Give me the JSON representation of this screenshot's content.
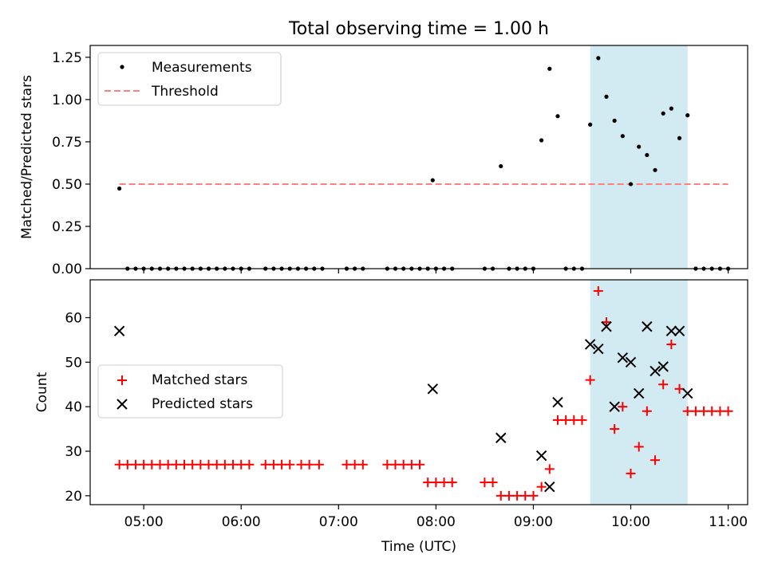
{
  "figure": {
    "title": "Total observing time = 1.00 h"
  },
  "chart_data": [
    {
      "type": "scatter",
      "ylabel": "Matched/Predicted stars",
      "xlabel": "",
      "ylim": [
        0,
        1.32
      ],
      "yticks": [
        "0.00",
        "0.25",
        "0.50",
        "0.75",
        "1.00",
        "1.25"
      ],
      "ytick_values": [
        0,
        0.25,
        0.5,
        0.75,
        1.0,
        1.25
      ],
      "x_tick_values": [
        "05:00",
        "06:00",
        "07:00",
        "08:00",
        "09:00",
        "10:00",
        "11:00"
      ],
      "grid": false,
      "legend_position": "upper-left",
      "highlight": {
        "from": "09:35",
        "to": "10:35",
        "color": "#add8e6"
      },
      "threshold": {
        "name": "Threshold",
        "value": 0.5,
        "from": "04:45",
        "to": "11:00",
        "color": "#ff8080"
      },
      "series": [
        {
          "name": "Measurements",
          "color": "#000000",
          "marker": "dot",
          "points": [
            [
              "04:45",
              0.474
            ],
            [
              "04:50",
              0
            ],
            [
              "04:55",
              0
            ],
            [
              "05:00",
              0
            ],
            [
              "05:05",
              0
            ],
            [
              "05:10",
              0
            ],
            [
              "05:15",
              0
            ],
            [
              "05:20",
              0
            ],
            [
              "05:25",
              0
            ],
            [
              "05:30",
              0
            ],
            [
              "05:35",
              0
            ],
            [
              "05:40",
              0
            ],
            [
              "05:45",
              0
            ],
            [
              "05:50",
              0
            ],
            [
              "05:55",
              0
            ],
            [
              "06:00",
              0
            ],
            [
              "06:05",
              0
            ],
            [
              "06:15",
              0
            ],
            [
              "06:20",
              0
            ],
            [
              "06:25",
              0
            ],
            [
              "06:30",
              0
            ],
            [
              "06:35",
              0
            ],
            [
              "06:40",
              0
            ],
            [
              "06:45",
              0
            ],
            [
              "06:50",
              0
            ],
            [
              "07:05",
              0
            ],
            [
              "07:10",
              0
            ],
            [
              "07:15",
              0
            ],
            [
              "07:30",
              0
            ],
            [
              "07:35",
              0
            ],
            [
              "07:40",
              0
            ],
            [
              "07:45",
              0
            ],
            [
              "07:50",
              0
            ],
            [
              "07:55",
              0
            ],
            [
              "07:58",
              0.523
            ],
            [
              "08:00",
              0
            ],
            [
              "08:05",
              0
            ],
            [
              "08:10",
              0
            ],
            [
              "08:30",
              0
            ],
            [
              "08:35",
              0
            ],
            [
              "08:40",
              0.606
            ],
            [
              "08:45",
              0
            ],
            [
              "08:50",
              0
            ],
            [
              "08:55",
              0
            ],
            [
              "09:00",
              0
            ],
            [
              "09:05",
              0.759
            ],
            [
              "09:10",
              1.182
            ],
            [
              "09:15",
              0.902
            ],
            [
              "09:20",
              0
            ],
            [
              "09:25",
              0
            ],
            [
              "09:30",
              0
            ],
            [
              "09:35",
              0.852
            ],
            [
              "09:40",
              1.245
            ],
            [
              "09:45",
              1.017
            ],
            [
              "09:50",
              0.875
            ],
            [
              "09:55",
              0.784
            ],
            [
              "10:00",
              0.5
            ],
            [
              "10:05",
              0.721
            ],
            [
              "10:10",
              0.672
            ],
            [
              "10:15",
              0.583
            ],
            [
              "10:20",
              0.918
            ],
            [
              "10:25",
              0.947
            ],
            [
              "10:30",
              0.772
            ],
            [
              "10:35",
              0.907
            ],
            [
              "10:40",
              0
            ],
            [
              "10:45",
              0
            ],
            [
              "10:50",
              0
            ],
            [
              "10:55",
              0
            ],
            [
              "11:00",
              0
            ]
          ]
        }
      ]
    },
    {
      "type": "scatter",
      "ylabel": "Count",
      "xlabel": "Time (UTC)",
      "ylim": [
        18,
        68.5
      ],
      "yticks": [
        "20",
        "30",
        "40",
        "50",
        "60"
      ],
      "ytick_values": [
        20,
        30,
        40,
        50,
        60
      ],
      "xticks": [
        "05:00",
        "06:00",
        "07:00",
        "08:00",
        "09:00",
        "10:00",
        "11:00"
      ],
      "grid": false,
      "legend_position": "center-left",
      "highlight": {
        "from": "09:35",
        "to": "10:35",
        "color": "#add8e6"
      },
      "series": [
        {
          "name": "Matched stars",
          "color": "#ff0000",
          "marker": "plus",
          "points": [
            [
              "04:45",
              27
            ],
            [
              "04:50",
              27
            ],
            [
              "04:55",
              27
            ],
            [
              "05:00",
              27
            ],
            [
              "05:05",
              27
            ],
            [
              "05:10",
              27
            ],
            [
              "05:15",
              27
            ],
            [
              "05:20",
              27
            ],
            [
              "05:25",
              27
            ],
            [
              "05:30",
              27
            ],
            [
              "05:35",
              27
            ],
            [
              "05:40",
              27
            ],
            [
              "05:45",
              27
            ],
            [
              "05:50",
              27
            ],
            [
              "05:55",
              27
            ],
            [
              "06:00",
              27
            ],
            [
              "06:05",
              27
            ],
            [
              "06:15",
              27
            ],
            [
              "06:20",
              27
            ],
            [
              "06:25",
              27
            ],
            [
              "06:30",
              27
            ],
            [
              "06:37",
              27
            ],
            [
              "06:42",
              27
            ],
            [
              "06:48",
              27
            ],
            [
              "07:05",
              27
            ],
            [
              "07:10",
              27
            ],
            [
              "07:15",
              27
            ],
            [
              "07:30",
              27
            ],
            [
              "07:35",
              27
            ],
            [
              "07:40",
              27
            ],
            [
              "07:45",
              27
            ],
            [
              "07:50",
              27
            ],
            [
              "07:55",
              23
            ],
            [
              "08:00",
              23
            ],
            [
              "08:05",
              23
            ],
            [
              "08:10",
              23
            ],
            [
              "08:30",
              23
            ],
            [
              "08:35",
              23
            ],
            [
              "08:40",
              20
            ],
            [
              "08:45",
              20
            ],
            [
              "08:50",
              20
            ],
            [
              "08:55",
              20
            ],
            [
              "09:00",
              20
            ],
            [
              "09:05",
              22
            ],
            [
              "09:10",
              26
            ],
            [
              "09:15",
              37
            ],
            [
              "09:20",
              37
            ],
            [
              "09:25",
              37
            ],
            [
              "09:30",
              37
            ],
            [
              "09:35",
              46
            ],
            [
              "09:40",
              66
            ],
            [
              "09:45",
              59
            ],
            [
              "09:50",
              35
            ],
            [
              "09:55",
              40
            ],
            [
              "10:00",
              25
            ],
            [
              "10:05",
              31
            ],
            [
              "10:10",
              39
            ],
            [
              "10:15",
              28
            ],
            [
              "10:20",
              45
            ],
            [
              "10:25",
              54
            ],
            [
              "10:30",
              44
            ],
            [
              "10:35",
              39
            ],
            [
              "10:40",
              39
            ],
            [
              "10:45",
              39
            ],
            [
              "10:50",
              39
            ],
            [
              "10:55",
              39
            ],
            [
              "11:00",
              39
            ]
          ]
        },
        {
          "name": "Predicted stars",
          "color": "#000000",
          "marker": "x",
          "points": [
            [
              "04:45",
              57
            ],
            [
              "07:58",
              44
            ],
            [
              "08:40",
              33
            ],
            [
              "09:05",
              29
            ],
            [
              "09:10",
              22
            ],
            [
              "09:15",
              41
            ],
            [
              "09:35",
              54
            ],
            [
              "09:40",
              53
            ],
            [
              "09:45",
              58
            ],
            [
              "09:50",
              40
            ],
            [
              "09:55",
              51
            ],
            [
              "10:00",
              50
            ],
            [
              "10:05",
              43
            ],
            [
              "10:10",
              58
            ],
            [
              "10:15",
              48
            ],
            [
              "10:20",
              49
            ],
            [
              "10:25",
              57
            ],
            [
              "10:30",
              57
            ],
            [
              "10:35",
              43
            ]
          ]
        }
      ]
    }
  ]
}
